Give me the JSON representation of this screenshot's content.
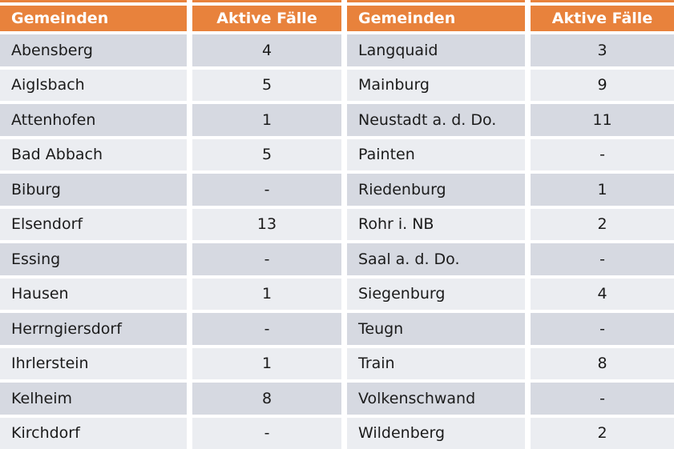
{
  "chart_data": {
    "type": "table",
    "layout_hint": "two side-by-side column pairs, orange header row, alternating gray row bands, white cell separators",
    "columns": [
      "Gemeinden",
      "Aktive Fälle",
      "Gemeinden",
      "Aktive Fälle"
    ],
    "rows": [
      [
        "Abensberg",
        "4",
        "Langquaid",
        "3"
      ],
      [
        "Aiglsbach",
        "5",
        "Mainburg",
        "9"
      ],
      [
        "Attenhofen",
        "1",
        "Neustadt a. d. Do.",
        "11"
      ],
      [
        "Bad Abbach",
        "5",
        "Painten",
        "-"
      ],
      [
        "Biburg",
        "-",
        "Riedenburg",
        "1"
      ],
      [
        "Elsendorf",
        "13",
        "Rohr i. NB",
        "2"
      ],
      [
        "Essing",
        "-",
        "Saal a. d. Do.",
        "-"
      ],
      [
        "Hausen",
        "1",
        "Siegenburg",
        "4"
      ],
      [
        "Herrngiersdorf",
        "-",
        "Teugn",
        "-"
      ],
      [
        "Ihrlerstein",
        "1",
        "Train",
        "8"
      ],
      [
        "Kelheim",
        "8",
        "Volkenschwand",
        "-"
      ],
      [
        "Kirchdorf",
        "-",
        "Wildenberg",
        "2"
      ]
    ]
  },
  "colors": {
    "header_bg": "#E8823C",
    "header_text": "#FFFFFF",
    "row_dark": "#D6D9E1",
    "row_light": "#EBEDF1",
    "cell_text": "#1B1B1B",
    "separator": "#FFFFFF"
  }
}
